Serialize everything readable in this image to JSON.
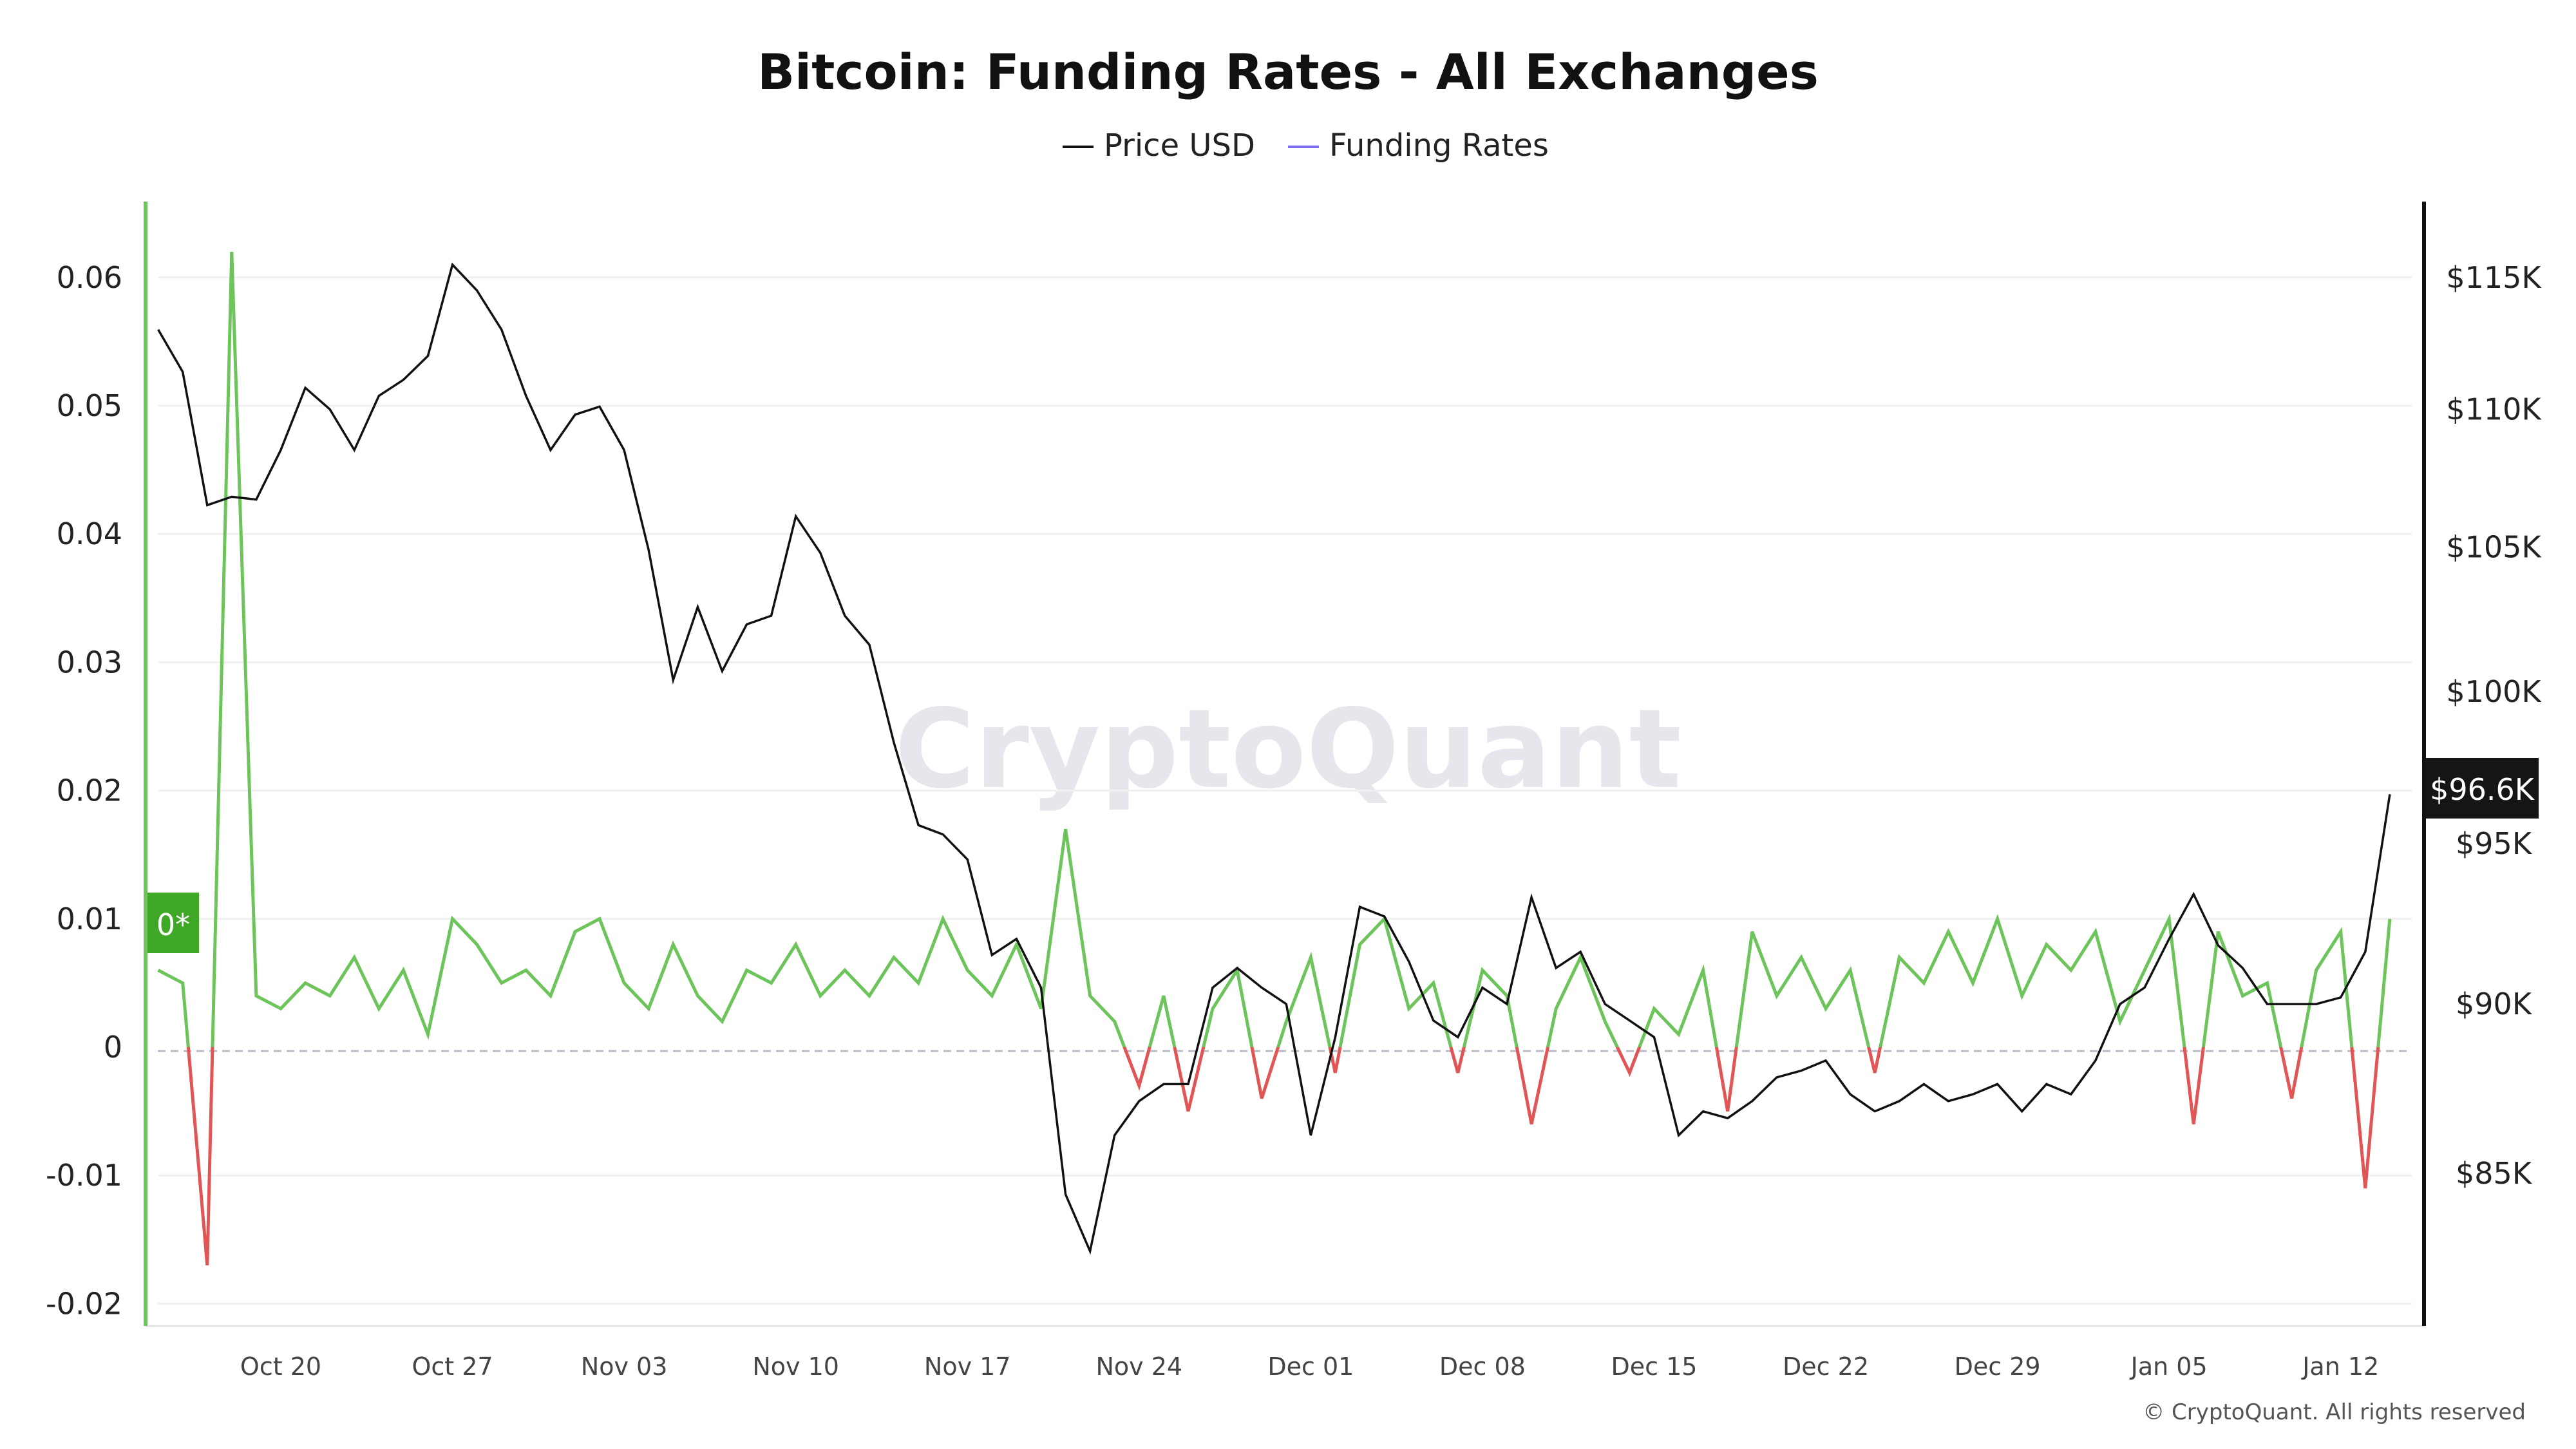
{
  "chart_data": {
    "type": "line",
    "title": "Bitcoin: Funding Rates - All Exchanges",
    "legend": {
      "placement": "top-center",
      "entries": [
        {
          "name": "Price USD",
          "color": "#111111"
        },
        {
          "name": "Funding Rates",
          "color": "#7b6cf0"
        }
      ]
    },
    "watermark": "CryptoQuant",
    "copyright": "© CryptoQuant. All rights reserved",
    "x_ticks": [
      "Oct 20",
      "Oct 27",
      "Nov 03",
      "Nov 10",
      "Nov 17",
      "Nov 24",
      "Dec 01",
      "Dec 08",
      "Dec 15",
      "Dec 22",
      "Dec 29",
      "Jan 05",
      "Jan 12"
    ],
    "left_axis": {
      "ticks": [
        "0.06",
        "0.05",
        "0.04",
        "0.03",
        "0.02",
        "0.01",
        "0",
        "-0.01",
        "-0.02"
      ],
      "tick_values": [
        0.06,
        0.05,
        0.04,
        0.03,
        0.02,
        0.01,
        0,
        -0.01,
        -0.02
      ],
      "range": [
        -0.0215,
        0.0615
      ],
      "current_label": "0*",
      "color": "#3fa826"
    },
    "right_axis": {
      "scale": "log",
      "ticks": [
        "$115K",
        "$110K",
        "$105K",
        "$100K",
        "$95K",
        "$90K",
        "$85K"
      ],
      "tick_values": [
        115000,
        110000,
        105000,
        100000,
        95000,
        90000,
        85000
      ],
      "current_label": "$96.6K"
    },
    "colors": {
      "positive": "#6cc45a",
      "negative": "#e25555",
      "price": "#111111",
      "zero_line": "#b8b8c8"
    },
    "x": [
      "Oct 15",
      "Oct 16",
      "Oct 17",
      "Oct 18",
      "Oct 19",
      "Oct 20",
      "Oct 21",
      "Oct 22",
      "Oct 23",
      "Oct 24",
      "Oct 25",
      "Oct 26",
      "Oct 27",
      "Oct 28",
      "Oct 29",
      "Oct 30",
      "Oct 31",
      "Nov 01",
      "Nov 02",
      "Nov 03",
      "Nov 04",
      "Nov 05",
      "Nov 06",
      "Nov 07",
      "Nov 08",
      "Nov 09",
      "Nov 10",
      "Nov 11",
      "Nov 12",
      "Nov 13",
      "Nov 14",
      "Nov 15",
      "Nov 16",
      "Nov 17",
      "Nov 18",
      "Nov 19",
      "Nov 20",
      "Nov 21",
      "Nov 22",
      "Nov 23",
      "Nov 24",
      "Nov 25",
      "Nov 26",
      "Nov 27",
      "Nov 28",
      "Nov 29",
      "Nov 30",
      "Dec 01",
      "Dec 02",
      "Dec 03",
      "Dec 04",
      "Dec 05",
      "Dec 06",
      "Dec 07",
      "Dec 08",
      "Dec 09",
      "Dec 10",
      "Dec 11",
      "Dec 12",
      "Dec 13",
      "Dec 14",
      "Dec 15",
      "Dec 16",
      "Dec 17",
      "Dec 18",
      "Dec 19",
      "Dec 20",
      "Dec 21",
      "Dec 22",
      "Dec 23",
      "Dec 24",
      "Dec 25",
      "Dec 26",
      "Dec 27",
      "Dec 28",
      "Dec 29",
      "Dec 30",
      "Dec 31",
      "Jan 01",
      "Jan 02",
      "Jan 03",
      "Jan 04",
      "Jan 05",
      "Jan 06",
      "Jan 07",
      "Jan 08",
      "Jan 09",
      "Jan 10",
      "Jan 11",
      "Jan 12",
      "Jan 13",
      "Jan 14"
    ],
    "series": [
      {
        "name": "Price USD",
        "axis": "right",
        "values": [
          113000,
          111400,
          106500,
          106800,
          106700,
          108500,
          110800,
          110000,
          108500,
          110500,
          111100,
          112000,
          115500,
          114500,
          113000,
          110500,
          108500,
          109800,
          110100,
          108500,
          104900,
          100400,
          102900,
          100700,
          102300,
          102600,
          106100,
          104800,
          102600,
          101600,
          98300,
          95600,
          95300,
          94500,
          91500,
          92000,
          90500,
          84400,
          82800,
          86100,
          87100,
          87600,
          87600,
          90500,
          91100,
          90500,
          90000,
          86100,
          89000,
          93000,
          92700,
          91300,
          89500,
          89000,
          90500,
          90000,
          93300,
          91100,
          91600,
          90000,
          89500,
          89000,
          86100,
          86800,
          86600,
          87100,
          87800,
          88000,
          88300,
          87300,
          86800,
          87100,
          87600,
          87100,
          87300,
          87600,
          86800,
          87600,
          87300,
          88300,
          90000,
          90500,
          92000,
          93400,
          91800,
          91100,
          90000,
          90000,
          90000,
          90200,
          91600,
          96600
        ]
      },
      {
        "name": "Funding Rates",
        "axis": "left",
        "values": [
          0.006,
          0.005,
          -0.017,
          0.062,
          0.004,
          0.003,
          0.005,
          0.004,
          0.007,
          0.003,
          0.006,
          0.001,
          0.01,
          0.008,
          0.005,
          0.006,
          0.004,
          0.009,
          0.01,
          0.005,
          0.003,
          0.008,
          0.004,
          0.002,
          0.006,
          0.005,
          0.008,
          0.004,
          0.006,
          0.004,
          0.007,
          0.005,
          0.01,
          0.006,
          0.004,
          0.008,
          0.003,
          0.017,
          0.004,
          0.002,
          -0.003,
          0.004,
          -0.005,
          0.003,
          0.006,
          -0.004,
          0.002,
          0.007,
          -0.002,
          0.008,
          0.01,
          0.003,
          0.005,
          -0.002,
          0.006,
          0.004,
          -0.006,
          0.003,
          0.007,
          0.002,
          -0.002,
          0.003,
          0.001,
          0.006,
          -0.005,
          0.009,
          0.004,
          0.007,
          0.003,
          0.006,
          -0.002,
          0.007,
          0.005,
          0.009,
          0.005,
          0.01,
          0.004,
          0.008,
          0.006,
          0.009,
          0.002,
          0.006,
          0.01,
          -0.006,
          0.009,
          0.004,
          0.005,
          -0.004,
          0.006,
          0.009,
          -0.011,
          0.01
        ]
      }
    ]
  }
}
